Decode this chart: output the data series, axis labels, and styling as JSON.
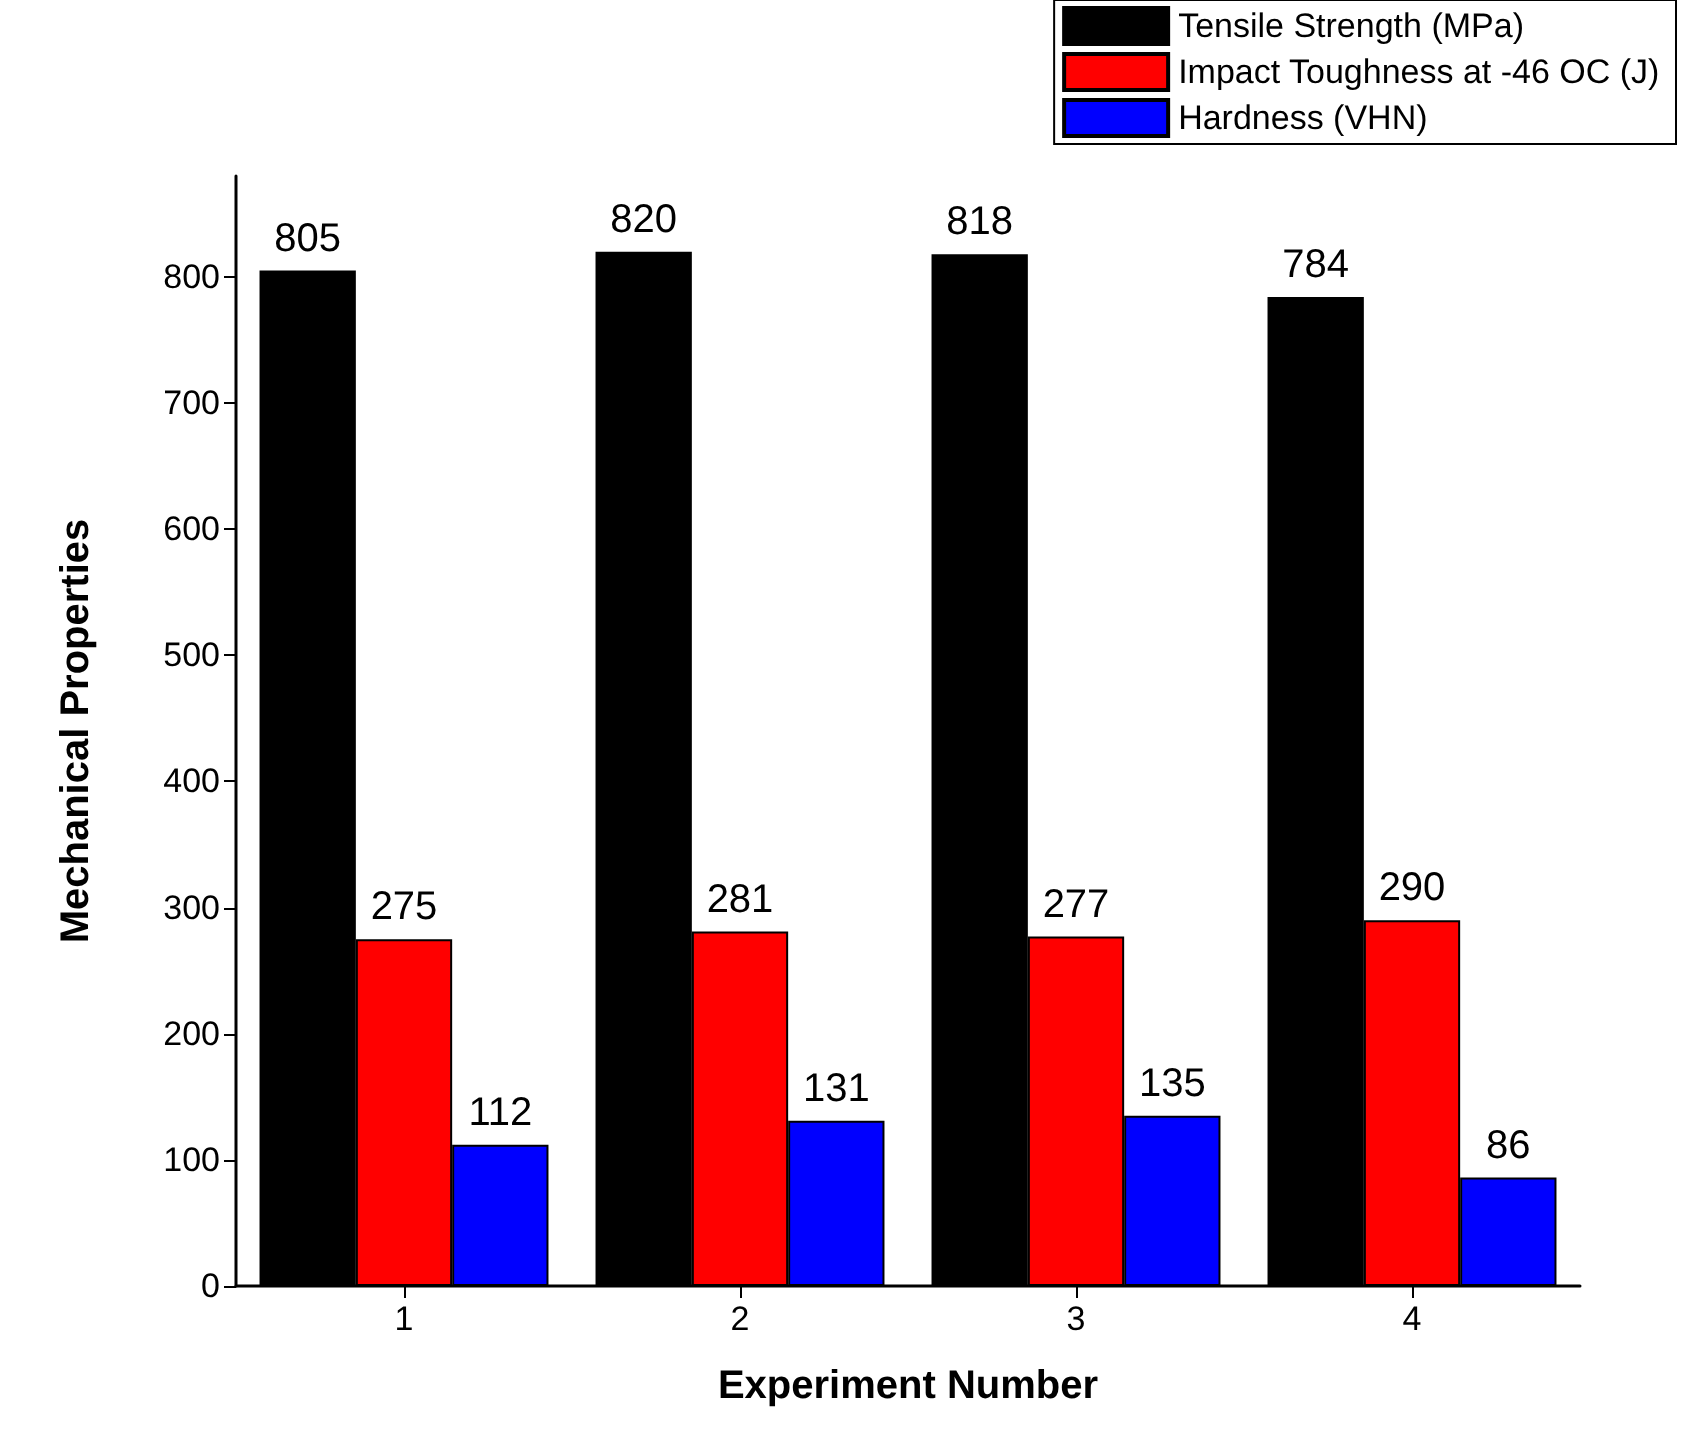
{
  "chart_data": {
    "type": "bar",
    "categories": [
      "1",
      "2",
      "3",
      "4"
    ],
    "series": [
      {
        "name": "Tensile Strength (MPa)",
        "color": "#000000",
        "values": [
          805,
          820,
          818,
          784
        ]
      },
      {
        "name": "Impact Toughness at -46 OC (J)",
        "color": "#ff0000",
        "values": [
          275,
          281,
          277,
          290
        ]
      },
      {
        "name": "Hardness (VHN)",
        "color": "#0000ff",
        "values": [
          112,
          131,
          135,
          86
        ]
      }
    ],
    "xlabel": "Experiment Number",
    "ylabel": "Mechanical Properties",
    "ylim": [
      0,
      880
    ],
    "yticks": [
      0,
      100,
      200,
      300,
      400,
      500,
      600,
      700,
      800
    ],
    "data_labels": true,
    "legend": "top right",
    "grid": false
  }
}
